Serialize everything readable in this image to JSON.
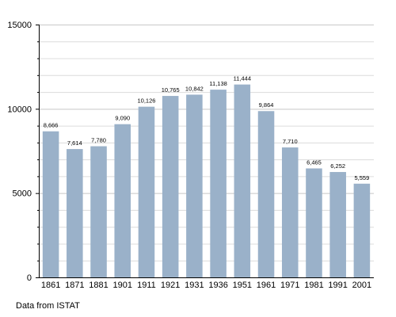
{
  "chart_data": {
    "type": "bar",
    "categories": [
      "1861",
      "1871",
      "1881",
      "1901",
      "1911",
      "1921",
      "1931",
      "1936",
      "1951",
      "1961",
      "1971",
      "1981",
      "1991",
      "2001"
    ],
    "values": [
      8666,
      7614,
      7780,
      9090,
      10126,
      10765,
      10842,
      11138,
      11444,
      9864,
      7710,
      6465,
      6252,
      5559
    ],
    "value_labels": [
      "8,666",
      "7,614",
      "7,780",
      "9,090",
      "10,126",
      "10,765",
      "10,842",
      "11,138",
      "11,444",
      "9,864",
      "7,710",
      "6,465",
      "6,252",
      "5,559"
    ],
    "ylim": [
      0,
      15000
    ],
    "y_ticks": [
      0,
      5000,
      10000,
      15000
    ],
    "y_minor_step": 1000,
    "grid": true,
    "legend": "none",
    "title": "",
    "xlabel": "",
    "ylabel": "",
    "note": "Data from ISTAT",
    "colors": {
      "bar": "#9ab1c9",
      "grid": "#dcdcdc",
      "axis": "#000000"
    }
  }
}
